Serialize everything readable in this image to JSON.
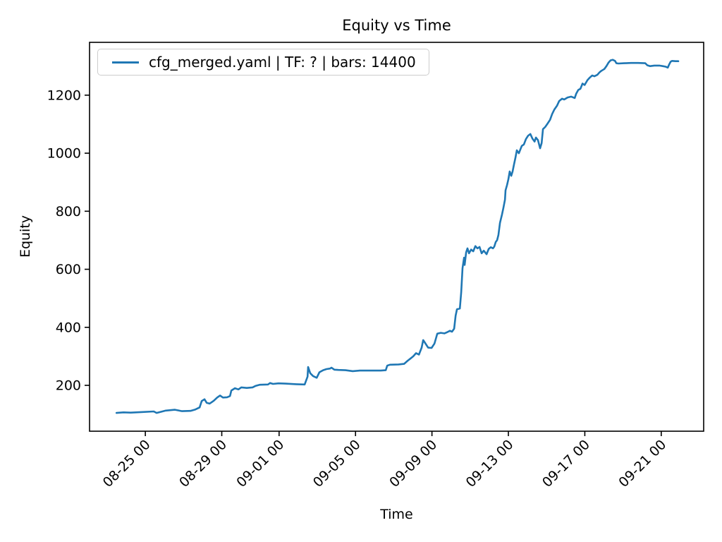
{
  "chart_data": {
    "type": "line",
    "title": "Equity vs Time",
    "xlabel": "Time",
    "ylabel": "Equity",
    "grid": false,
    "x_axis": {
      "unit": "day offset (0 = 08-23 00:00)",
      "lim": [
        -0.92,
        31.22
      ],
      "tick_rotation_deg": 45,
      "ticks": [
        {
          "pos": 2,
          "label": "08-25 00"
        },
        {
          "pos": 6,
          "label": "08-29 00"
        },
        {
          "pos": 9,
          "label": "09-01 00"
        },
        {
          "pos": 13,
          "label": "09-05 00"
        },
        {
          "pos": 17,
          "label": "09-09 00"
        },
        {
          "pos": 21,
          "label": "09-13 00"
        },
        {
          "pos": 25,
          "label": "09-17 00"
        },
        {
          "pos": 29,
          "label": "09-21 00"
        }
      ]
    },
    "y_axis": {
      "lim": [
        42,
        1382
      ],
      "ticks": [
        200,
        400,
        600,
        800,
        1000,
        1200
      ]
    },
    "legend": {
      "location": "upper left",
      "entries": [
        {
          "label": "cfg_merged.yaml | TF: ? | bars: 14400",
          "color": "#1f77b4"
        }
      ]
    },
    "series": [
      {
        "name": "cfg_merged.yaml | TF: ? | bars: 14400",
        "color": "#1f77b4",
        "points": [
          [
            0.49,
            105
          ],
          [
            0.86,
            107
          ],
          [
            1.23,
            106
          ],
          [
            1.78,
            108
          ],
          [
            2.44,
            110
          ],
          [
            2.59,
            105
          ],
          [
            3.07,
            113
          ],
          [
            3.55,
            116
          ],
          [
            3.92,
            111
          ],
          [
            4.36,
            112
          ],
          [
            4.62,
            117
          ],
          [
            4.84,
            124
          ],
          [
            4.95,
            146
          ],
          [
            5.1,
            152
          ],
          [
            5.21,
            140
          ],
          [
            5.36,
            137
          ],
          [
            5.47,
            142
          ],
          [
            5.58,
            147
          ],
          [
            5.76,
            158
          ],
          [
            5.91,
            165
          ],
          [
            6.06,
            158
          ],
          [
            6.28,
            159
          ],
          [
            6.43,
            163
          ],
          [
            6.5,
            182
          ],
          [
            6.69,
            190
          ],
          [
            6.87,
            186
          ],
          [
            7.02,
            193
          ],
          [
            7.31,
            191
          ],
          [
            7.61,
            193
          ],
          [
            7.76,
            198
          ],
          [
            7.98,
            202
          ],
          [
            8.42,
            203
          ],
          [
            8.53,
            208
          ],
          [
            8.68,
            205
          ],
          [
            8.97,
            207
          ],
          [
            9.34,
            206
          ],
          [
            9.9,
            204
          ],
          [
            10.34,
            203
          ],
          [
            10.49,
            230
          ],
          [
            10.52,
            263
          ],
          [
            10.63,
            242
          ],
          [
            10.78,
            232
          ],
          [
            10.97,
            226
          ],
          [
            11.11,
            245
          ],
          [
            11.3,
            252
          ],
          [
            11.48,
            256
          ],
          [
            11.67,
            258
          ],
          [
            11.74,
            261
          ],
          [
            11.89,
            254
          ],
          [
            12.11,
            253
          ],
          [
            12.48,
            252
          ],
          [
            12.85,
            249
          ],
          [
            13.22,
            251
          ],
          [
            13.77,
            251
          ],
          [
            14.32,
            251
          ],
          [
            14.58,
            252
          ],
          [
            14.66,
            268
          ],
          [
            14.8,
            271
          ],
          [
            15.25,
            272
          ],
          [
            15.54,
            274
          ],
          [
            15.73,
            285
          ],
          [
            15.87,
            292
          ],
          [
            16.02,
            300
          ],
          [
            16.17,
            311
          ],
          [
            16.32,
            306
          ],
          [
            16.46,
            330
          ],
          [
            16.54,
            356
          ],
          [
            16.65,
            345
          ],
          [
            16.8,
            330
          ],
          [
            16.98,
            329
          ],
          [
            17.13,
            344
          ],
          [
            17.28,
            378
          ],
          [
            17.46,
            381
          ],
          [
            17.65,
            379
          ],
          [
            17.79,
            383
          ],
          [
            17.94,
            388
          ],
          [
            18.05,
            385
          ],
          [
            18.16,
            395
          ],
          [
            18.24,
            440
          ],
          [
            18.31,
            462
          ],
          [
            18.46,
            465
          ],
          [
            18.53,
            520
          ],
          [
            18.6,
            604
          ],
          [
            18.68,
            640
          ],
          [
            18.71,
            615
          ],
          [
            18.79,
            658
          ],
          [
            18.86,
            672
          ],
          [
            18.94,
            655
          ],
          [
            19.05,
            668
          ],
          [
            19.16,
            662
          ],
          [
            19.27,
            680
          ],
          [
            19.38,
            672
          ],
          [
            19.49,
            677
          ],
          [
            19.6,
            655
          ],
          [
            19.71,
            664
          ],
          [
            19.86,
            652
          ],
          [
            19.97,
            670
          ],
          [
            20.08,
            676
          ],
          [
            20.19,
            672
          ],
          [
            20.26,
            678
          ],
          [
            20.34,
            694
          ],
          [
            20.41,
            700
          ],
          [
            20.48,
            718
          ],
          [
            20.56,
            760
          ],
          [
            20.67,
            790
          ],
          [
            20.74,
            812
          ],
          [
            20.82,
            840
          ],
          [
            20.85,
            872
          ],
          [
            20.93,
            890
          ],
          [
            21.0,
            910
          ],
          [
            21.07,
            937
          ],
          [
            21.15,
            922
          ],
          [
            21.22,
            937
          ],
          [
            21.29,
            960
          ],
          [
            21.37,
            985
          ],
          [
            21.44,
            1010
          ],
          [
            21.55,
            1000
          ],
          [
            21.7,
            1025
          ],
          [
            21.81,
            1030
          ],
          [
            21.92,
            1049
          ],
          [
            22.03,
            1060
          ],
          [
            22.15,
            1066
          ],
          [
            22.26,
            1050
          ],
          [
            22.37,
            1040
          ],
          [
            22.44,
            1054
          ],
          [
            22.55,
            1045
          ],
          [
            22.66,
            1017
          ],
          [
            22.74,
            1035
          ],
          [
            22.81,
            1083
          ],
          [
            22.92,
            1090
          ],
          [
            23.03,
            1100
          ],
          [
            23.18,
            1115
          ],
          [
            23.29,
            1135
          ],
          [
            23.4,
            1150
          ],
          [
            23.55,
            1164
          ],
          [
            23.66,
            1180
          ],
          [
            23.81,
            1188
          ],
          [
            23.92,
            1185
          ],
          [
            24.1,
            1192
          ],
          [
            24.29,
            1195
          ],
          [
            24.47,
            1190
          ],
          [
            24.55,
            1205
          ],
          [
            24.66,
            1218
          ],
          [
            24.77,
            1222
          ],
          [
            24.88,
            1240
          ],
          [
            24.99,
            1235
          ],
          [
            25.14,
            1252
          ],
          [
            25.25,
            1260
          ],
          [
            25.39,
            1268
          ],
          [
            25.5,
            1265
          ],
          [
            25.65,
            1270
          ],
          [
            25.76,
            1278
          ],
          [
            25.87,
            1284
          ],
          [
            26.02,
            1290
          ],
          [
            26.13,
            1300
          ],
          [
            26.24,
            1312
          ],
          [
            26.35,
            1320
          ],
          [
            26.46,
            1322
          ],
          [
            26.58,
            1318
          ],
          [
            26.65,
            1310
          ],
          [
            26.76,
            1309
          ],
          [
            27.05,
            1310
          ],
          [
            27.42,
            1311
          ],
          [
            27.79,
            1311
          ],
          [
            28.16,
            1310
          ],
          [
            28.27,
            1303
          ],
          [
            28.42,
            1300
          ],
          [
            28.64,
            1302
          ],
          [
            28.9,
            1302
          ],
          [
            29.08,
            1300
          ],
          [
            29.23,
            1298
          ],
          [
            29.34,
            1295
          ],
          [
            29.41,
            1305
          ],
          [
            29.49,
            1315
          ],
          [
            29.56,
            1318
          ],
          [
            29.75,
            1317
          ],
          [
            29.89,
            1317
          ]
        ]
      }
    ]
  }
}
